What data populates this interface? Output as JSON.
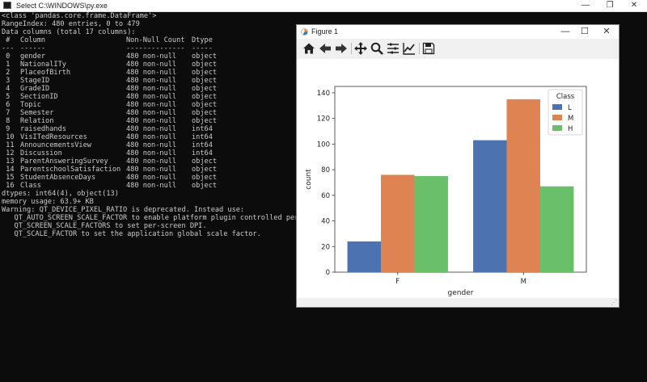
{
  "console": {
    "title": "Select C:\\WINDOWS\\py.exe",
    "controls": {
      "minimize": "—",
      "maximize": "❐",
      "close": "✕"
    },
    "header_lines": [
      "<class 'pandas.core.frame.DataFrame'>",
      "RangeIndex: 480 entries, 0 to 479",
      "Data columns (total 17 columns):"
    ],
    "columns_header": {
      "idx": " #",
      "name": "Column",
      "count": "Non-Null Count",
      "type": "Dtype"
    },
    "columns_rule": {
      "idx": "---",
      "name": "------",
      "count": "--------------",
      "type": "-----"
    },
    "rows": [
      {
        "idx": " 0",
        "name": "gender",
        "count": "480 non-null",
        "type": "object"
      },
      {
        "idx": " 1",
        "name": "NationalITy",
        "count": "480 non-null",
        "type": "object"
      },
      {
        "idx": " 2",
        "name": "PlaceofBirth",
        "count": "480 non-null",
        "type": "object"
      },
      {
        "idx": " 3",
        "name": "StageID",
        "count": "480 non-null",
        "type": "object"
      },
      {
        "idx": " 4",
        "name": "GradeID",
        "count": "480 non-null",
        "type": "object"
      },
      {
        "idx": " 5",
        "name": "SectionID",
        "count": "480 non-null",
        "type": "object"
      },
      {
        "idx": " 6",
        "name": "Topic",
        "count": "480 non-null",
        "type": "object"
      },
      {
        "idx": " 7",
        "name": "Semester",
        "count": "480 non-null",
        "type": "object"
      },
      {
        "idx": " 8",
        "name": "Relation",
        "count": "480 non-null",
        "type": "object"
      },
      {
        "idx": " 9",
        "name": "raisedhands",
        "count": "480 non-null",
        "type": "int64"
      },
      {
        "idx": " 10",
        "name": "VisITedResources",
        "count": "480 non-null",
        "type": "int64"
      },
      {
        "idx": " 11",
        "name": "AnnouncementsView",
        "count": "480 non-null",
        "type": "int64"
      },
      {
        "idx": " 12",
        "name": "Discussion",
        "count": "480 non-null",
        "type": "int64"
      },
      {
        "idx": " 13",
        "name": "ParentAnsweringSurvey",
        "count": "480 non-null",
        "type": "object"
      },
      {
        "idx": " 14",
        "name": "ParentschoolSatisfaction",
        "count": "480 non-null",
        "type": "object"
      },
      {
        "idx": " 15",
        "name": "StudentAbsenceDays",
        "count": "480 non-null",
        "type": "object"
      },
      {
        "idx": " 16",
        "name": "Class",
        "count": "480 non-null",
        "type": "object"
      }
    ],
    "footer_lines": [
      "dtypes: int64(4), object(13)",
      "memory usage: 63.9+ KB",
      "Warning: QT_DEVICE_PIXEL_RATIO is deprecated. Instead use:",
      "   QT_AUTO_SCREEN_SCALE_FACTOR to enable platform plugin controlled per-screen factors.",
      "   QT_SCREEN_SCALE_FACTORS to set per-screen DPI.",
      "   QT_SCALE_FACTOR to set the application global scale factor."
    ]
  },
  "figure": {
    "title": "Figure 1",
    "controls": {
      "minimize": "—",
      "maximize": "☐",
      "close": "✕"
    },
    "toolbar": [
      "home-icon",
      "back-arrow-icon",
      "forward-arrow-icon",
      "pan-icon",
      "zoom-icon",
      "subplots-icon",
      "edit-axis-icon",
      "save-icon"
    ]
  },
  "chart_data": {
    "type": "bar",
    "categories": [
      "F",
      "M"
    ],
    "series": [
      {
        "name": "L",
        "values": [
          24,
          103
        ],
        "color": "#4c72b0"
      },
      {
        "name": "M",
        "values": [
          76,
          135
        ],
        "color": "#dd8452"
      },
      {
        "name": "H",
        "values": [
          75,
          67
        ],
        "color": "#6abf6a"
      }
    ],
    "xlabel": "gender",
    "ylabel": "count",
    "ylim": [
      0,
      145
    ],
    "yticks": [
      0,
      20,
      40,
      60,
      80,
      100,
      120,
      140
    ],
    "legend": {
      "title": "Class",
      "placement": "top-right"
    },
    "grid": false
  }
}
